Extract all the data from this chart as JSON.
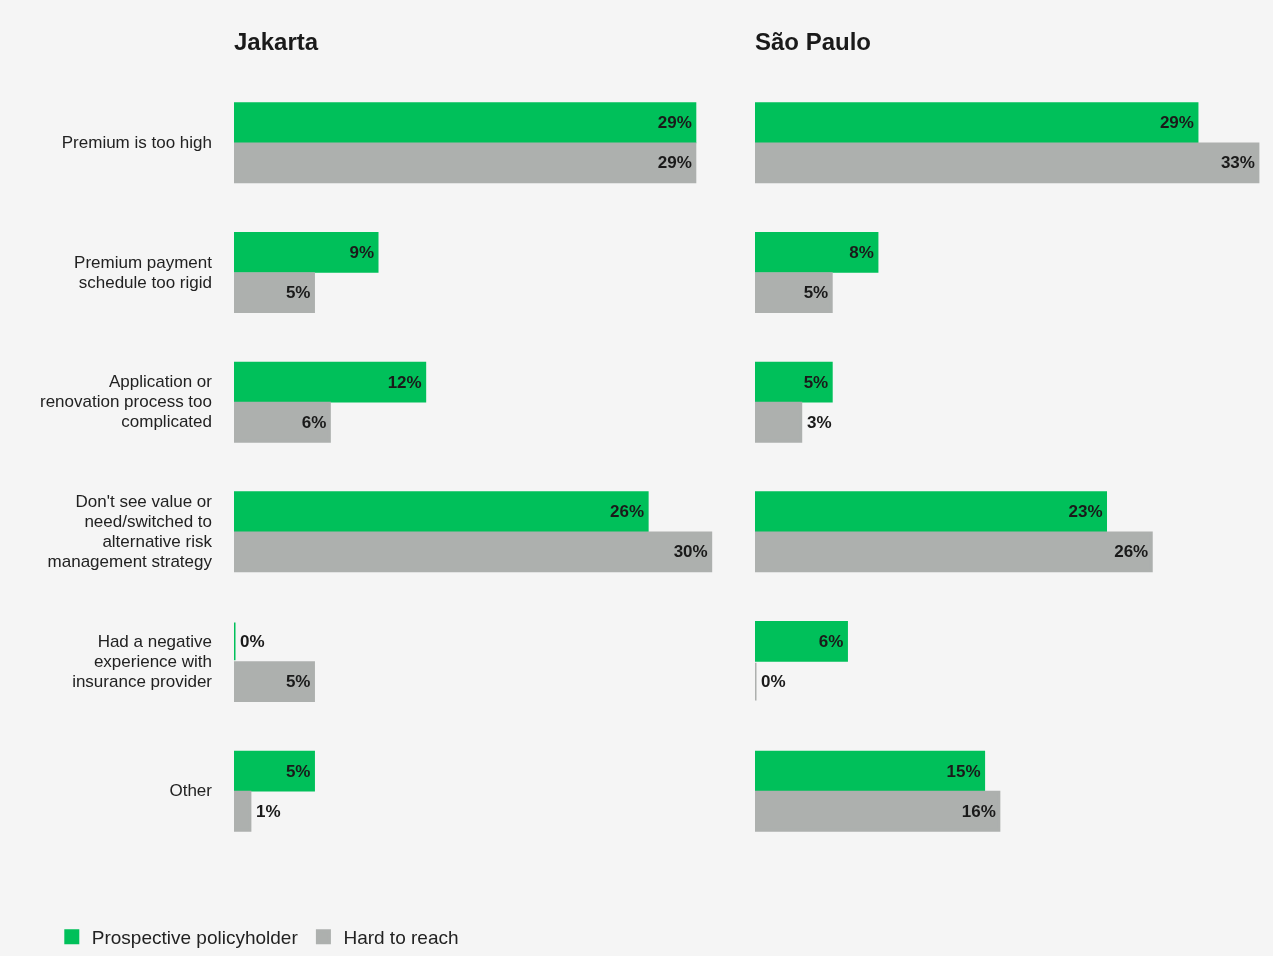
{
  "chart_data": [
    {
      "type": "bar",
      "orientation": "horizontal",
      "title": "Jakarta",
      "categories": [
        "Premium is too high",
        "Premium payment schedule too rigid",
        "Application or renovation process too complicated",
        "Don't see value or need/switched to alternative risk management strategy",
        "Had a negative experience with insurance provider",
        "Other"
      ],
      "series": [
        {
          "name": "Prospective policyholder",
          "color": "#00c05a",
          "values": [
            29,
            9,
            12,
            26,
            0,
            5
          ],
          "value_labels": [
            "29%",
            "9%",
            "12%",
            "26%",
            "0%",
            "5%"
          ]
        },
        {
          "name": "Hard to reach",
          "color": "#adb0ae",
          "values": [
            29,
            5,
            6,
            30,
            5,
            1
          ],
          "value_labels": [
            "29%",
            "5%",
            "6%",
            "30%",
            "5%",
            "1%"
          ]
        }
      ],
      "legend": "bottom left",
      "tick_labels": "y"
    },
    {
      "type": "bar",
      "orientation": "horizontal",
      "title": "São Paulo",
      "categories": [
        null,
        null,
        null,
        null,
        null,
        null
      ],
      "series": [
        {
          "color": "#00c05a",
          "values": [
            29,
            8,
            5,
            23,
            6,
            15
          ],
          "value_labels": [
            "29%",
            "8%",
            "5%",
            "23%",
            "6%",
            "15%"
          ]
        },
        {
          "color": "#adb0ae",
          "values": [
            33,
            5,
            3,
            26,
            0,
            16
          ],
          "value_labels": [
            "33%",
            "5%",
            "3%",
            "26%",
            "0%",
            "16%"
          ]
        }
      ],
      "tick_labels": false
    }
  ]
}
